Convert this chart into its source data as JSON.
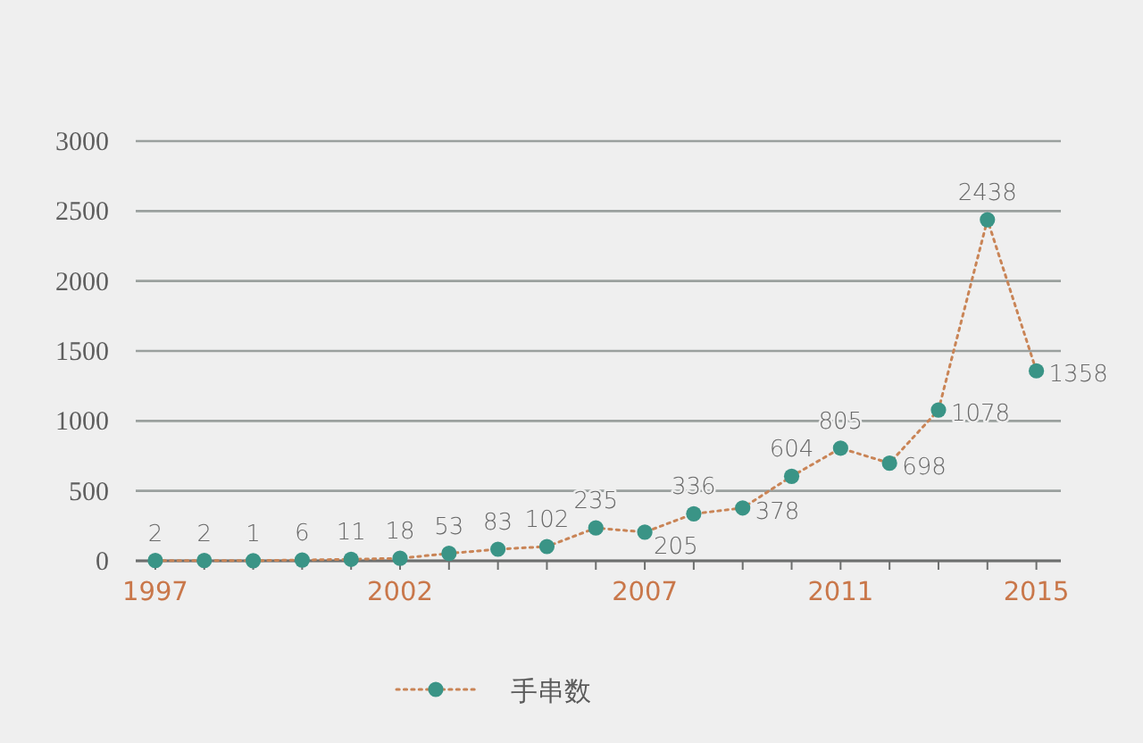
{
  "chart_data": {
    "type": "line",
    "x": [
      1997,
      1998,
      1999,
      2000,
      2001,
      2002,
      2003,
      2004,
      2005,
      2006,
      2007,
      2008,
      2009,
      2010,
      2011,
      2012,
      2013,
      2014,
      2015
    ],
    "series": [
      {
        "name": "手串数",
        "color": "#3a9486",
        "values": [
          2,
          2,
          1,
          6,
          11,
          18,
          53,
          83,
          102,
          235,
          205,
          336,
          378,
          604,
          805,
          698,
          1078,
          2438,
          1358
        ]
      }
    ],
    "xlim": [
      1996.6,
      2015.5
    ],
    "xticks": [
      1997,
      {
        "value": 1998,
        "label": null
      },
      {
        "value": 1999,
        "label": null
      },
      {
        "value": 2000,
        "label": null
      },
      {
        "value": 2001,
        "label": null
      },
      2002,
      {
        "value": 2003,
        "label": null
      },
      {
        "value": 2004,
        "label": null
      },
      {
        "value": 2005,
        "label": null
      },
      {
        "value": 2006,
        "label": null
      },
      2007,
      {
        "value": 2008,
        "label": null
      },
      {
        "value": 2009,
        "label": null
      },
      {
        "value": 2010,
        "label": null
      },
      2011,
      {
        "value": 2012,
        "label": null
      },
      {
        "value": 2013,
        "label": null
      },
      {
        "value": 2014,
        "label": null
      },
      2015
    ],
    "ylim": [
      0,
      3000
    ],
    "yticks": [
      0,
      500,
      1000,
      1500,
      2000,
      2500,
      3000
    ],
    "grid": "y",
    "legend": "bottom",
    "marker": "circle",
    "line_style": "dotted",
    "data_labels": true
  }
}
